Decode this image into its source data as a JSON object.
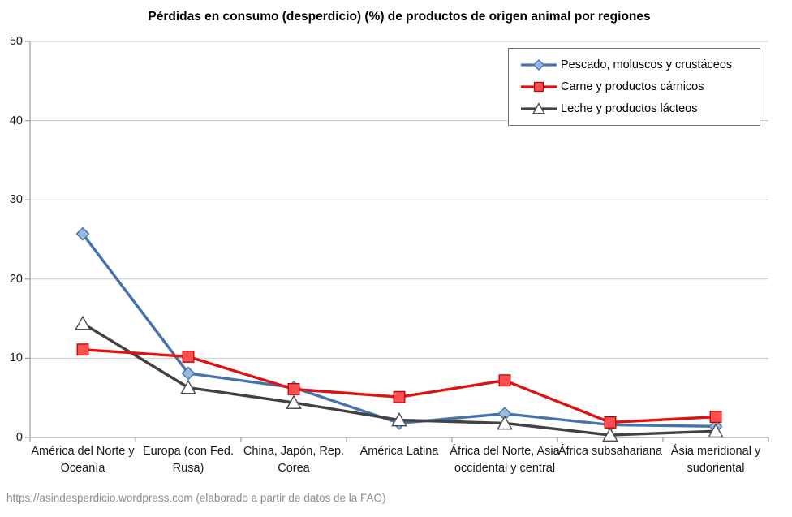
{
  "chart_data": {
    "type": "line",
    "title": "Pérdidas en consumo (desperdicio) (%) de productos de origen animal por regiones",
    "categories": [
      "América del Norte y Oceanía",
      "Europa (con Fed. Rusa)",
      "China, Japón, Rep. Corea",
      "América Latina",
      "África del Norte, Asia occidental y central",
      "África subsahariana",
      "Ásia meridional y sudoriental"
    ],
    "series": [
      {
        "name": "Pescado, moluscos y crustáceos",
        "marker": "diamond",
        "line_color": "#4474B0",
        "marker_fill": "#9DB8DB",
        "marker_stroke": "#4A7CB8",
        "values": [
          25.7,
          8.1,
          6.3,
          1.8,
          3.0,
          1.6,
          1.4
        ]
      },
      {
        "name": "Carne y productos cárnicos",
        "marker": "square",
        "line_color": "#E01111",
        "marker_fill": "#FD4F4F",
        "marker_stroke": "#BF0000",
        "values": [
          11.1,
          10.2,
          6.1,
          5.1,
          7.2,
          1.9,
          2.6
        ]
      },
      {
        "name": "Leche y productos lácteos",
        "marker": "triangle",
        "line_color": "#424242",
        "marker_fill": "#FFFFFF",
        "marker_stroke": "#4D4D4D",
        "values": [
          14.4,
          6.3,
          4.4,
          2.2,
          1.8,
          0.3,
          0.8
        ]
      }
    ],
    "yticks": [
      "0",
      "10",
      "20",
      "30",
      "40",
      "50"
    ],
    "ylim": [
      0,
      50
    ],
    "grid": true,
    "legend_position": "top-right",
    "draw_order": [
      0,
      2,
      1
    ],
    "axis_color": "#9C9C9C",
    "grid_color": "#C9C9C9"
  },
  "footer": {
    "text": "https://asindesperdicio.wordpress.com  (elaborado a partir de datos de la FAO)"
  }
}
